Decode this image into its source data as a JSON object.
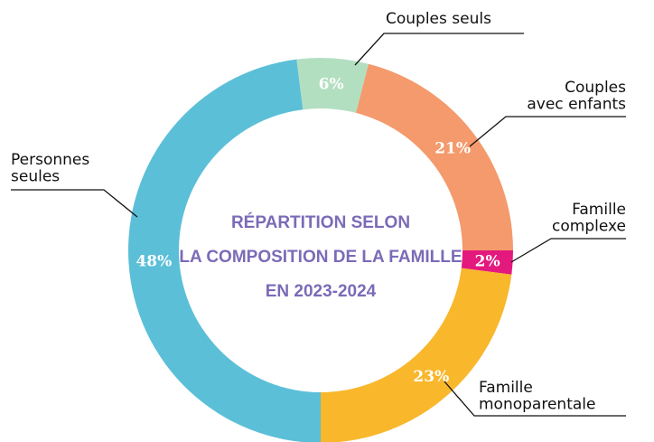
{
  "chart_data": {
    "type": "donut",
    "title": [
      "RÉPARTITION SELON",
      "LA COMPOSITION DE LA FAMILLE",
      "EN 2023-2024"
    ],
    "categories": [
      "Couples seuls",
      "Couples\navec enfants",
      "Famille\ncomplexe",
      "Famille\nmonoparentale",
      "Personnes\nseules"
    ],
    "values": [
      6,
      21,
      2,
      23,
      48
    ],
    "value_labels": [
      "6%",
      "21%",
      "2%",
      "23%",
      "48%"
    ],
    "colors": [
      "#b3dfc1",
      "#f49a6c",
      "#e4197e",
      "#f9b72c",
      "#5cbfd8"
    ]
  }
}
